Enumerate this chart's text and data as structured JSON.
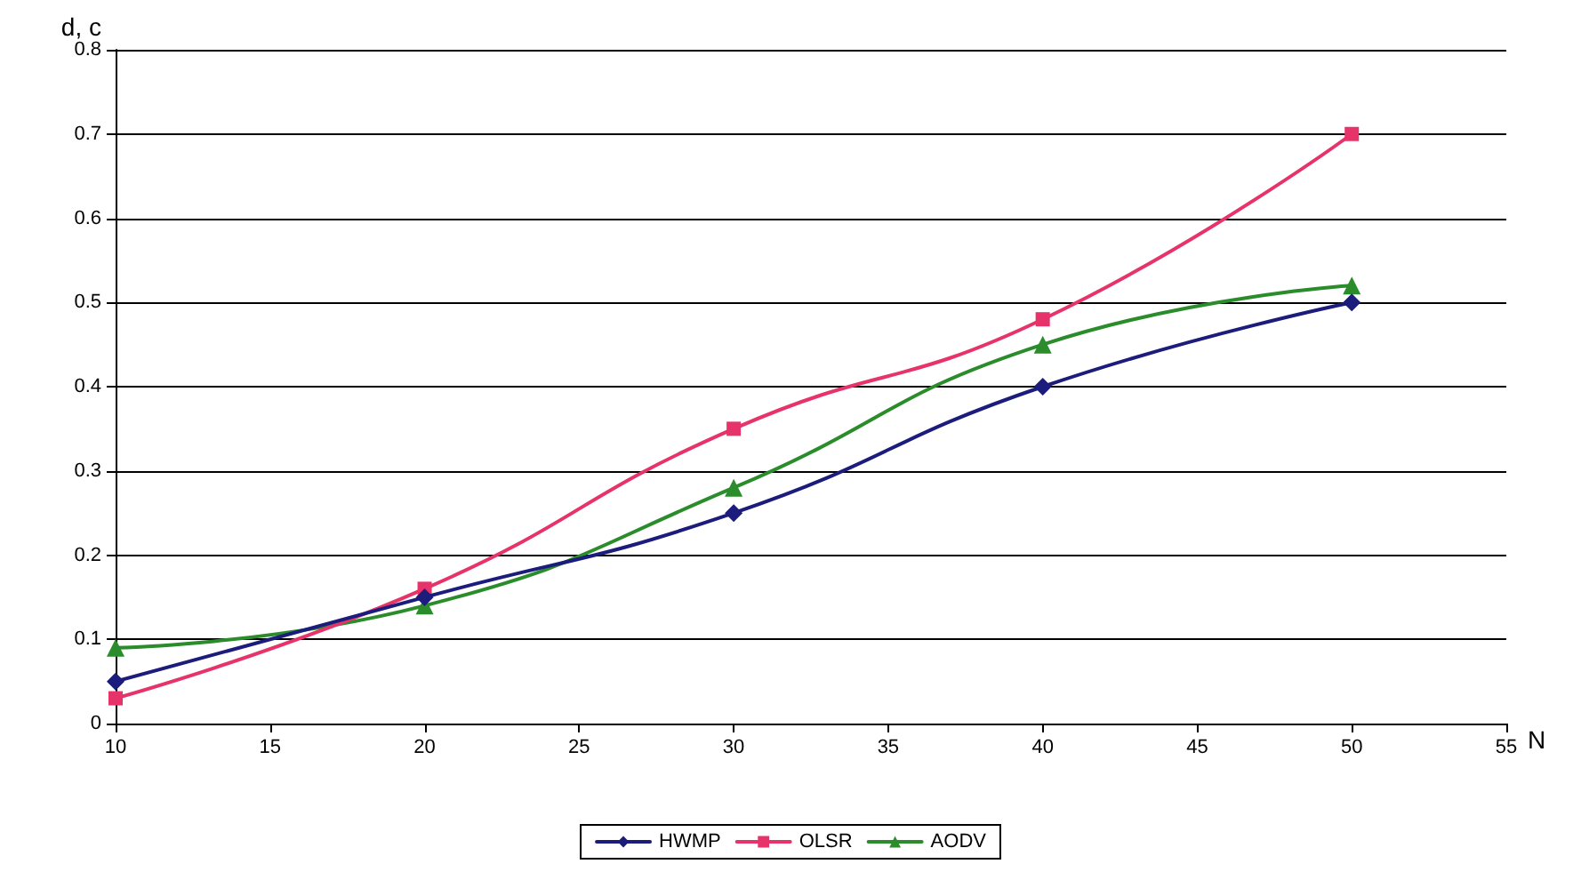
{
  "chart_data": {
    "type": "line",
    "xlabel": "N",
    "ylabel": "d, c",
    "x": [
      10,
      20,
      30,
      40,
      50
    ],
    "xlim": [
      10,
      55
    ],
    "xticks": [
      10,
      15,
      20,
      25,
      30,
      35,
      40,
      45,
      50,
      55
    ],
    "ylim": [
      0,
      0.8
    ],
    "yticks": [
      0,
      0.1,
      0.2,
      0.3,
      0.4,
      0.5,
      0.6,
      0.7,
      0.8
    ],
    "grid": "y",
    "legend": "bottom",
    "line_style": "solid",
    "series": [
      {
        "name": "HWMP",
        "color": "#1c1c7c",
        "marker": "diamond",
        "values": [
          0.05,
          0.15,
          0.25,
          0.4,
          0.5
        ]
      },
      {
        "name": "OLSR",
        "color": "#e6336a",
        "marker": "square",
        "values": [
          0.03,
          0.16,
          0.35,
          0.48,
          0.7
        ]
      },
      {
        "name": "AODV",
        "color": "#2a8c2a",
        "marker": "triangle",
        "values": [
          0.09,
          0.14,
          0.28,
          0.45,
          0.52
        ]
      }
    ]
  }
}
